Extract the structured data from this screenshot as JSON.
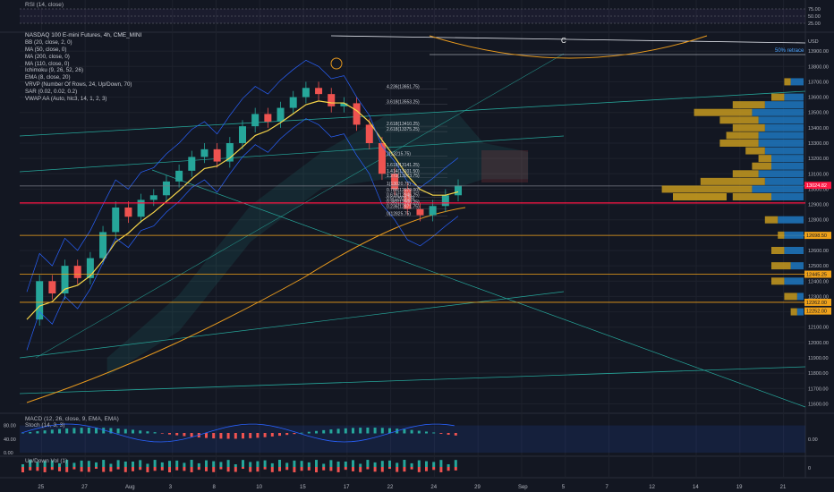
{
  "symbol_title": "NASDAQ 100 E-mini Futures, 4h, CME_MINI",
  "indicators": [
    "BB (20, close, 2, 0)",
    "MA (50, close, 0)",
    "MA (200, close, 0)",
    "MA (110, close, 0)",
    "Ichimoku (9, 26, 52, 26)",
    "EMA (8, close, 20)",
    "VRVP (Number Of Rows, 24, Up/Down, 70)",
    "SAR (0.02, 0.02, 0.2)",
    "VWAP AA (Auto, hlc3, 14, 1, 2, 3)"
  ],
  "panes": {
    "rsi": {
      "title": "RSI (14, close)",
      "scale": [
        "75.00",
        "50.00",
        "25.00"
      ]
    },
    "macd": {
      "title": "MACD (12, 26, close, 9, EMA, EMA)",
      "subtitle": "Stoch (14, 3, 3)",
      "scale_left": [
        "80.00",
        "40.00",
        "0.00"
      ],
      "scale_right": "0.00"
    },
    "vol": {
      "title": "Up/Down Vol (1)",
      "scale_right": "0"
    }
  },
  "currency": "USD",
  "wave_label": "C",
  "retrace_label": "50% retrace",
  "fib_labels": [
    "4.236(13651.75)",
    "3.618(13553.25)",
    "2.618(13410.25)",
    "2.618(13375.25)",
    "2(13215.75)",
    "1.618(13141.25)",
    "1.414(13101.50)",
    "1.272(13073.75)",
    "1(13020.75)",
    "0.786(12979.00)",
    "0.618(12946.25)",
    "0.5(12923.25)",
    "0.382(12900.25)",
    "0.236(12871.75)",
    "0(12825.75)"
  ],
  "price_badges": [
    "13024.82",
    "12698.50",
    "12445.25",
    "12262.00",
    "12252.00"
  ],
  "colors": {
    "background": "#131722",
    "up": "#26a69a",
    "down": "#ef5350",
    "ema": "#f9d74a",
    "ma200": "#e89a1e",
    "red_line": "#ff1744",
    "orange_line": "#f0a21a",
    "vp_up": "#1f78c1",
    "vp_down": "#c79a1e",
    "retrace": "#4aa3ff"
  },
  "chart_data": {
    "type": "line",
    "title": "NASDAQ 100 E-mini Futures, 4h, CME_MINI",
    "y_axis_ticks": [
      13900,
      13800,
      13700,
      13600,
      13500,
      13400,
      13300,
      13200,
      13100,
      13000,
      12900,
      12800,
      12700,
      12600,
      12500,
      12400,
      12300,
      12200,
      12100,
      12000,
      11900,
      11800,
      11700,
      11600
    ],
    "ylim": [
      11550,
      14000
    ],
    "x_axis_ticks": [
      "25",
      "27",
      "Aug",
      "3",
      "8",
      "10",
      "15",
      "17",
      "22",
      "24",
      "29",
      "Sep",
      "5",
      "7",
      "12",
      "14",
      "19",
      "21"
    ],
    "price_path": [
      12150,
      12400,
      12320,
      12500,
      12420,
      12550,
      12720,
      12880,
      12820,
      12930,
      12960,
      13050,
      13120,
      13210,
      13260,
      13180,
      13300,
      13410,
      13490,
      13440,
      13530,
      13600,
      13660,
      13620,
      13540,
      13560,
      13420,
      13300,
      13100,
      13000,
      12870,
      12830,
      12890,
      12960,
      13024
    ],
    "horizontal_levels": [
      {
        "value": 12910,
        "color": "red"
      },
      {
        "value": 12698.5,
        "color": "orange"
      },
      {
        "value": 12445.25,
        "color": "orange"
      },
      {
        "value": 12262,
        "color": "orange"
      },
      {
        "value": 13020.75,
        "color": "gray"
      }
    ],
    "volume_profile": [
      {
        "price": 13700,
        "up": 2,
        "down": 1
      },
      {
        "price": 13600,
        "up": 3,
        "down": 2
      },
      {
        "price": 13550,
        "up": 6,
        "down": 5
      },
      {
        "price": 13500,
        "up": 8,
        "down": 9
      },
      {
        "price": 13450,
        "up": 7,
        "down": 6
      },
      {
        "price": 13400,
        "up": 6,
        "down": 5
      },
      {
        "price": 13350,
        "up": 7,
        "down": 5
      },
      {
        "price": 13300,
        "up": 7,
        "down": 6
      },
      {
        "price": 13250,
        "up": 6,
        "down": 3
      },
      {
        "price": 13200,
        "up": 5,
        "down": 2
      },
      {
        "price": 13150,
        "up": 5,
        "down": 3
      },
      {
        "price": 13100,
        "up": 7,
        "down": 4
      },
      {
        "price": 13050,
        "up": 6,
        "down": 10
      },
      {
        "price": 13000,
        "up": 8,
        "down": 14
      },
      {
        "price": 12950,
        "up": 5,
        "down": 6
      },
      {
        "price": 12800,
        "up": 4,
        "down": 2
      },
      {
        "price": 12700,
        "up": 3,
        "down": 1
      },
      {
        "price": 12600,
        "up": 3,
        "down": 2
      },
      {
        "price": 12500,
        "up": 2,
        "down": 3
      },
      {
        "price": 12400,
        "up": 3,
        "down": 2
      },
      {
        "price": 12300,
        "up": 1,
        "down": 2
      },
      {
        "price": 12200,
        "up": 1,
        "down": 1
      }
    ]
  }
}
